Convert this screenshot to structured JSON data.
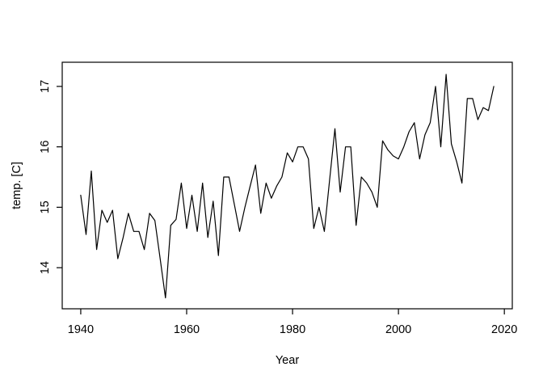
{
  "figure": {
    "background": "#ffffff",
    "line_color": "#000000",
    "text_color": "#000000"
  },
  "chart_data": {
    "type": "line",
    "title": "",
    "xlabel": "Year",
    "ylabel": "temp. [C]",
    "legend": "none",
    "grid": false,
    "x_ticks": [
      1940,
      1960,
      1980,
      2000,
      2020
    ],
    "y_ticks": [
      14,
      15,
      16,
      17
    ],
    "xlim": [
      1936.5,
      2021.5
    ],
    "ylim": [
      13.32,
      17.4
    ],
    "x": [
      1940,
      1941,
      1942,
      1943,
      1944,
      1945,
      1946,
      1947,
      1948,
      1949,
      1950,
      1951,
      1952,
      1953,
      1954,
      1955,
      1956,
      1957,
      1958,
      1959,
      1960,
      1961,
      1962,
      1963,
      1964,
      1965,
      1966,
      1967,
      1968,
      1969,
      1970,
      1971,
      1972,
      1973,
      1974,
      1975,
      1976,
      1977,
      1978,
      1979,
      1980,
      1981,
      1982,
      1983,
      1984,
      1985,
      1986,
      1987,
      1988,
      1989,
      1990,
      1991,
      1992,
      1993,
      1994,
      1995,
      1996,
      1997,
      1998,
      1999,
      2000,
      2001,
      2002,
      2003,
      2004,
      2005,
      2006,
      2007,
      2008,
      2009,
      2010,
      2011,
      2012,
      2013,
      2014,
      2015,
      2016,
      2017,
      2018
    ],
    "values": [
      15.2,
      14.55,
      15.6,
      14.3,
      14.95,
      14.75,
      14.95,
      14.15,
      14.5,
      14.9,
      14.6,
      14.6,
      14.3,
      14.9,
      14.78,
      14.15,
      13.5,
      14.7,
      14.8,
      15.4,
      14.65,
      15.2,
      14.6,
      15.4,
      14.5,
      15.1,
      14.2,
      15.5,
      15.5,
      15.05,
      14.6,
      15.0,
      15.35,
      15.7,
      14.9,
      15.4,
      15.15,
      15.35,
      15.5,
      15.9,
      15.75,
      16.0,
      16.0,
      15.8,
      14.65,
      15.0,
      14.6,
      15.45,
      16.3,
      15.25,
      16.0,
      16.0,
      14.7,
      15.5,
      15.4,
      15.25,
      15.0,
      16.1,
      15.95,
      15.85,
      15.8,
      16.0,
      16.25,
      16.4,
      15.8,
      16.2,
      16.4,
      17.0,
      16.0,
      17.2,
      16.05,
      15.75,
      15.4,
      16.8,
      16.8,
      16.45,
      16.65,
      16.6,
      17.0
    ]
  }
}
